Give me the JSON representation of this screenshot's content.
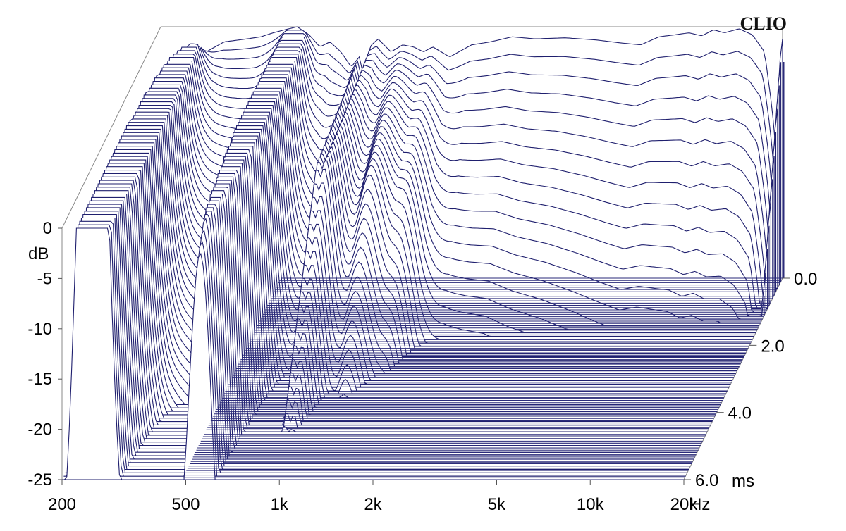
{
  "chart_data": {
    "type": "waterfall",
    "brand": "CLIO",
    "x_axis": {
      "scale": "log",
      "range": [
        200,
        20000
      ],
      "unit_label": "Hz",
      "ticks": [
        {
          "value": 200,
          "label": "200"
        },
        {
          "value": 500,
          "label": "500"
        },
        {
          "value": 1000,
          "label": "1k"
        },
        {
          "value": 2000,
          "label": "2k"
        },
        {
          "value": 5000,
          "label": "5k"
        },
        {
          "value": 10000,
          "label": "10k"
        },
        {
          "value": 20000,
          "label": "20k"
        }
      ]
    },
    "y_axis": {
      "unit_label": "dB",
      "range": [
        -25,
        0
      ],
      "ticks": [
        {
          "value": 0,
          "label": "0"
        },
        {
          "value": -5,
          "label": "-5"
        },
        {
          "value": -10,
          "label": "-10"
        },
        {
          "value": -15,
          "label": "-15"
        },
        {
          "value": -20,
          "label": "-20"
        },
        {
          "value": -25,
          "label": "-25"
        }
      ]
    },
    "time_axis": {
      "unit_label": "ms",
      "range": [
        0,
        6
      ],
      "ticks": [
        {
          "value": 0,
          "label": "0.0"
        },
        {
          "value": 2,
          "label": "2.0"
        },
        {
          "value": 4,
          "label": "4.0"
        },
        {
          "value": 6,
          "label": "6.0"
        }
      ]
    },
    "slice_count": 60,
    "colors": {
      "line": "#1f1f6e",
      "floor": "#2a2a7a",
      "frame": "#888888",
      "fill": "#ffffff"
    },
    "series": [
      {
        "time_ms": 0.0,
        "points": [
          [
            200,
            -24
          ],
          [
            230,
            -14
          ],
          [
            250,
            -9
          ],
          [
            280,
            -2.5
          ],
          [
            320,
            -1.5
          ],
          [
            380,
            -1.2
          ],
          [
            420,
            -1.0
          ],
          [
            460,
            -0.6
          ],
          [
            500,
            -0.3
          ],
          [
            550,
            0.0
          ],
          [
            600,
            -0.8
          ],
          [
            650,
            -2.0
          ],
          [
            700,
            -1.5
          ],
          [
            760,
            -2.5
          ],
          [
            820,
            -4.0
          ],
          [
            870,
            -3.0
          ],
          [
            900,
            -5.0
          ],
          [
            940,
            -2.0
          ],
          [
            1000,
            -1.2
          ],
          [
            1100,
            -2.5
          ],
          [
            1200,
            -1.8
          ],
          [
            1300,
            -2.0
          ],
          [
            1400,
            -2.5
          ],
          [
            1500,
            -2.0
          ],
          [
            1700,
            -3.0
          ],
          [
            2000,
            -1.8
          ],
          [
            2300,
            -1.5
          ],
          [
            2700,
            -1.0
          ],
          [
            3200,
            -1.2
          ],
          [
            4000,
            -1.1
          ],
          [
            5000,
            -1.3
          ],
          [
            6000,
            -1.6
          ],
          [
            7000,
            -1.8
          ],
          [
            8000,
            -1.0
          ],
          [
            9000,
            -0.8
          ],
          [
            10000,
            -0.6
          ],
          [
            11000,
            -0.9
          ],
          [
            12000,
            -0.3
          ],
          [
            13000,
            -0.6
          ],
          [
            14500,
            -0.2
          ],
          [
            16000,
            -0.8
          ],
          [
            17500,
            -2.5
          ],
          [
            18500,
            -8.0
          ],
          [
            19000,
            -12.0
          ],
          [
            19500,
            -4.0
          ],
          [
            20000,
            -1.2
          ]
        ]
      },
      {
        "time_ms": 6.0,
        "points": [
          [
            200,
            -25
          ],
          [
            20000,
            -25
          ]
        ]
      }
    ]
  }
}
